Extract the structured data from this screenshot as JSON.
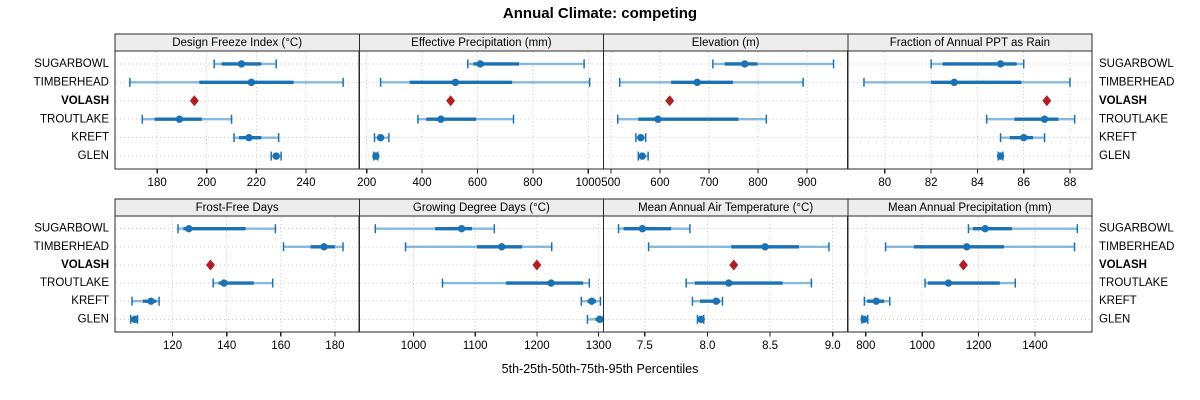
{
  "figure": {
    "title": "Annual Climate: competing",
    "xlabel": "5th-25th-50th-75th-95th Percentiles"
  },
  "chart_data": {
    "type": "scatter",
    "subtype": "trellis-percentile-interval-dotplot",
    "title": "Annual Climate: competing",
    "xlabel": "5th-25th-50th-75th-95th Percentiles",
    "percentiles": [
      5,
      25,
      50,
      75,
      95
    ],
    "sites": [
      "SUGARBOWL",
      "TIMBERHEAD",
      "VOLASH",
      "TROUTLAKE",
      "KREFT",
      "GLEN"
    ],
    "highlight_site": "VOLASH",
    "layout": {
      "rows": 2,
      "cols": 4,
      "grid": "dotted",
      "legend": "none"
    },
    "colors": {
      "point_blue": "#1a72b5",
      "band_light_blue": "#85b9dd",
      "highlight_red": "#b01f24",
      "strip_bg": "#ededed",
      "panel_border": "#2a2a2a",
      "grid_gray": "#c8c8c8"
    },
    "panels": [
      {
        "title": "Design Freeze Index (°C)",
        "xlim": [
          163,
          261.5
        ],
        "ticks": [
          180,
          200,
          220,
          240
        ],
        "tick_labels": [
          "180",
          "200",
          "220",
          "240"
        ],
        "values": {
          "SUGARBOWL": [
            203,
            206,
            214,
            222,
            228
          ],
          "TIMBERHEAD": [
            169,
            197,
            218,
            235,
            255
          ],
          "VOLASH": 195,
          "TROUTLAKE": [
            174,
            179,
            189,
            198,
            210
          ],
          "KREFT": [
            211,
            213,
            217,
            222,
            229
          ],
          "GLEN": [
            226,
            227,
            228,
            229,
            230
          ]
        }
      },
      {
        "title": "Effective Precipitation (mm)",
        "xlim": [
          173,
          1055
        ],
        "ticks": [
          200,
          400,
          600,
          800,
          1000
        ],
        "tick_labels": [
          "200",
          "400",
          "600",
          "800",
          "1000"
        ],
        "values": {
          "SUGARBOWL": [
            565,
            585,
            610,
            750,
            985
          ],
          "TIMBERHEAD": [
            250,
            355,
            520,
            725,
            1005
          ],
          "VOLASH": 503,
          "TROUTLAKE": [
            385,
            415,
            468,
            595,
            730
          ],
          "KREFT": [
            228,
            240,
            250,
            262,
            280
          ],
          "GLEN": [
            225,
            230,
            233,
            236,
            240
          ]
        }
      },
      {
        "title": "Elevation (m)",
        "xlim": [
          485,
          983
        ],
        "ticks": [
          500,
          600,
          700,
          800,
          900
        ],
        "tick_labels": [
          "500",
          "600",
          "700",
          "800",
          "900"
        ],
        "values": {
          "SUGARBOWL": [
            708,
            732,
            773,
            799,
            954
          ],
          "TIMBERHEAD": [
            518,
            623,
            676,
            749,
            892
          ],
          "VOLASH": 620,
          "TROUTLAKE": [
            514,
            556,
            596,
            760,
            817
          ],
          "KREFT": [
            551,
            556,
            561,
            566,
            571
          ],
          "GLEN": [
            556,
            560,
            564,
            569,
            576
          ]
        }
      },
      {
        "title": "Fraction of Annual PPT as Rain",
        "xlim": [
          78.4,
          88.95
        ],
        "ticks": [
          80,
          82,
          84,
          86,
          88
        ],
        "tick_labels": [
          "80",
          "82",
          "84",
          "86",
          "88"
        ],
        "values": {
          "SUGARBOWL": [
            82,
            82.5,
            85,
            85.7,
            86
          ],
          "TIMBERHEAD": [
            79.1,
            82,
            83,
            85.9,
            88
          ],
          "VOLASH": 87,
          "TROUTLAKE": [
            84.4,
            85.6,
            86.9,
            87.5,
            88.2
          ],
          "KREFT": [
            85,
            85.4,
            86,
            86.4,
            86.9
          ],
          "GLEN": [
            84.9,
            84.95,
            85,
            85.05,
            85.1
          ]
        }
      },
      {
        "title": "Frost-Free Days",
        "xlim": [
          98.7,
          189
        ],
        "ticks": [
          120,
          140,
          160,
          180
        ],
        "tick_labels": [
          "120",
          "140",
          "160",
          "180"
        ],
        "values": {
          "SUGARBOWL": [
            122,
            124,
            126,
            147,
            158
          ],
          "TIMBERHEAD": [
            161,
            171,
            176,
            180,
            183
          ],
          "VOLASH": 134,
          "TROUTLAKE": [
            135,
            137,
            139,
            150,
            157
          ],
          "KREFT": [
            105,
            109,
            112,
            114,
            115
          ],
          "GLEN": [
            104.5,
            105,
            106,
            106.5,
            107
          ]
        }
      },
      {
        "title": "Growing Degree Days (°C)",
        "xlim": [
          912,
          1308
        ],
        "ticks": [
          1000,
          1100,
          1200,
          1300
        ],
        "tick_labels": [
          "1000",
          "1100",
          "1200",
          "1300"
        ],
        "values": {
          "SUGARBOWL": [
            938,
            1035,
            1078,
            1095,
            1131
          ],
          "TIMBERHEAD": [
            987,
            1103,
            1143,
            1176,
            1224
          ],
          "VOLASH": 1200,
          "TROUTLAKE": [
            1047,
            1150,
            1223,
            1275,
            1285
          ],
          "KREFT": [
            1272,
            1282,
            1289,
            1296,
            1303
          ],
          "GLEN": [
            1282,
            1295,
            1302,
            1306,
            1308
          ]
        }
      },
      {
        "title": "Mean Annual Air Temperature (°C)",
        "xlim": [
          7.17,
          9.12
        ],
        "ticks": [
          7.5,
          8.0,
          8.5,
          9.0
        ],
        "tick_labels": [
          "7.5",
          "8.0",
          "8.5",
          "9.0"
        ],
        "values": {
          "SUGARBOWL": [
            7.29,
            7.33,
            7.48,
            7.71,
            7.86
          ],
          "TIMBERHEAD": [
            7.53,
            8.19,
            8.46,
            8.73,
            8.97
          ],
          "VOLASH": 8.21,
          "TROUTLAKE": [
            7.83,
            7.9,
            8.17,
            8.6,
            8.83
          ],
          "KREFT": [
            7.88,
            7.94,
            8.07,
            8.1,
            8.12
          ],
          "GLEN": [
            7.92,
            7.93,
            7.95,
            7.96,
            7.97
          ]
        }
      },
      {
        "title": "Mean Annual Precipitation (mm)",
        "xlim": [
          736,
          1602
        ],
        "ticks": [
          800,
          1000,
          1200,
          1400
        ],
        "tick_labels": [
          "800",
          "1000",
          "1200",
          "1400"
        ],
        "values": {
          "SUGARBOWL": [
            1164,
            1180,
            1223,
            1318,
            1550
          ],
          "TIMBERHEAD": [
            870,
            970,
            1158,
            1290,
            1540
          ],
          "VOLASH": 1146,
          "TROUTLAKE": [
            1010,
            1020,
            1093,
            1275,
            1330
          ],
          "KREFT": [
            795,
            805,
            837,
            865,
            885
          ],
          "GLEN": [
            786,
            790,
            794,
            800,
            807
          ]
        }
      }
    ]
  }
}
